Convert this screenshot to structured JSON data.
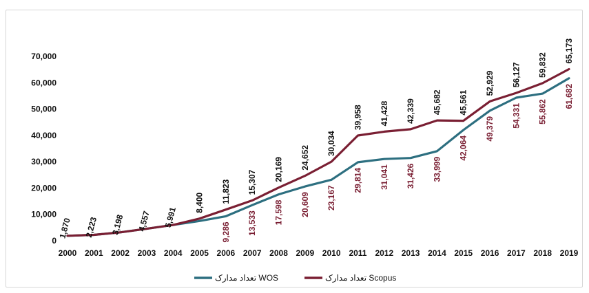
{
  "chart_data": {
    "type": "line",
    "title": "",
    "xlabel": "",
    "ylabel": "",
    "ylim": [
      0,
      70000
    ],
    "yticks": [
      "0",
      "10,000",
      "20,000",
      "30,000",
      "40,000",
      "50,000",
      "60,000",
      "70,000"
    ],
    "grid": false,
    "legend_position": "bottom",
    "categories": [
      "2000",
      "2001",
      "2002",
      "2003",
      "2004",
      "2005",
      "2006",
      "2007",
      "2008",
      "2009",
      "2010",
      "2011",
      "2012",
      "2013",
      "2014",
      "2015",
      "2016",
      "2017",
      "2018",
      "2019"
    ],
    "series": [
      {
        "name": "تعداد مدارک WOS",
        "color": "#2d6f80",
        "values": [
          1870,
          2223,
          3198,
          4557,
          5991,
          7500,
          9286,
          13533,
          17598,
          20609,
          23167,
          29814,
          31041,
          31426,
          33999,
          42064,
          49379,
          54331,
          55862,
          61682
        ],
        "labels": [
          "",
          "",
          "",
          "",
          "",
          "",
          "9,286",
          "13,533",
          "17,598",
          "20,609",
          "23,167",
          "29,814",
          "31,041",
          "31,426",
          "33,999",
          "42,064",
          "49,379",
          "54,331",
          "55,862",
          "61,682"
        ]
      },
      {
        "name": "تعداد مدارک Scopus",
        "color": "#7a1f33",
        "values": [
          1870,
          2223,
          3198,
          4557,
          5991,
          8400,
          11823,
          15307,
          20169,
          24652,
          30034,
          39958,
          41428,
          42339,
          45682,
          45561,
          52929,
          56127,
          59832,
          65173
        ],
        "labels": [
          "1,870",
          "2,223",
          "3,198",
          "4,557",
          "5,991",
          "8,400",
          "11,823",
          "15,307",
          "20,169",
          "24,652",
          "30,034",
          "39,958",
          "41,428",
          "42,339",
          "45,682",
          "45,561",
          "52,929",
          "56,127",
          "59,832",
          "65,173"
        ]
      }
    ]
  }
}
